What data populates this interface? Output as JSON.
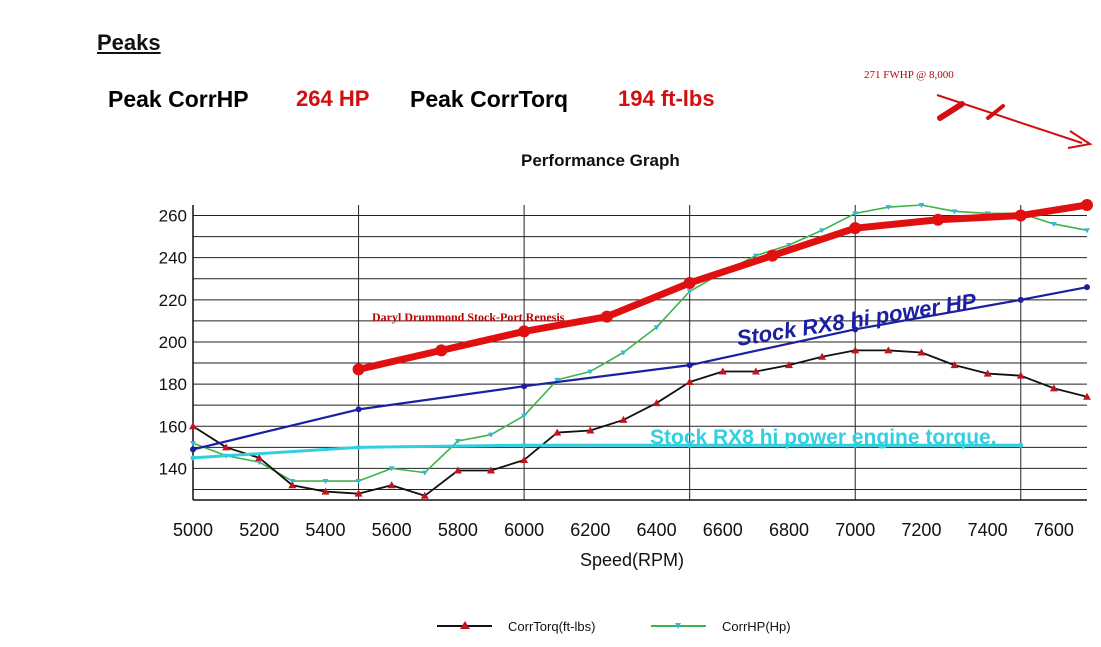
{
  "peaks": {
    "heading": "Peaks",
    "hp_label": "Peak CorrHP",
    "hp_value": "264 HP",
    "torque_label": "Peak CorrTorq",
    "torque_value": "194 ft-lbs"
  },
  "annotations": {
    "fwhp": "271 FWHP @ 8,000",
    "daryl": "Daryl Drummond Stock-Port Renesis",
    "stock_hp": "Stock RX8 hi power HP",
    "stock_torque": "Stock RX8 hi power engine torque."
  },
  "colors": {
    "torque": "#c0141e",
    "hp": "#3cb44b",
    "red_overlay": "#e01010",
    "blue_overlay": "#1a20a0",
    "cyan_overlay": "#30d0e0"
  },
  "chart_data": {
    "type": "line",
    "title": "Performance Graph",
    "xlabel": "Speed(RPM)",
    "ylabel": "",
    "xlim": [
      5000,
      7700
    ],
    "ylim": [
      125,
      265
    ],
    "x_ticks": [
      5000,
      5200,
      5400,
      5600,
      5800,
      6000,
      6200,
      6400,
      6600,
      6800,
      7000,
      7200,
      7400,
      7600
    ],
    "y_ticks": [
      140,
      160,
      180,
      200,
      220,
      240,
      260
    ],
    "legend": [
      "CorrTorq(ft-lbs)",
      "CorrHP(Hp)"
    ],
    "legend_position": "bottom",
    "series": [
      {
        "name": "CorrTorq(ft-lbs)",
        "x": [
          5000,
          5100,
          5200,
          5300,
          5400,
          5500,
          5600,
          5700,
          5800,
          5900,
          6000,
          6100,
          6200,
          6300,
          6400,
          6500,
          6600,
          6700,
          6800,
          6900,
          7000,
          7100,
          7200,
          7300,
          7400,
          7500,
          7600,
          7700
        ],
        "y": [
          160,
          150,
          145,
          132,
          129,
          128,
          132,
          127,
          139,
          139,
          144,
          157,
          158,
          163,
          171,
          181,
          186,
          186,
          189,
          193,
          196,
          196,
          195,
          189,
          185,
          184,
          178,
          174
        ]
      },
      {
        "name": "CorrHP(Hp)",
        "x": [
          5000,
          5100,
          5200,
          5300,
          5400,
          5500,
          5600,
          5700,
          5800,
          5900,
          6000,
          6100,
          6200,
          6300,
          6400,
          6500,
          6600,
          6700,
          6800,
          6900,
          7000,
          7100,
          7200,
          7300,
          7400,
          7500,
          7600,
          7700
        ],
        "y": [
          152,
          146,
          143,
          134,
          134,
          134,
          140,
          138,
          153,
          156,
          165,
          182,
          186,
          195,
          207,
          224,
          233,
          241,
          246,
          253,
          261,
          264,
          265,
          262,
          261,
          261,
          256,
          253
        ]
      },
      {
        "name": "Daryl Drummond Stock-Port Renesis",
        "x": [
          5500,
          5750,
          6000,
          6250,
          6500,
          6750,
          7000,
          7250,
          7500,
          7700
        ],
        "y": [
          187,
          196,
          205,
          212,
          228,
          241,
          254,
          258,
          260,
          265
        ]
      },
      {
        "name": "Stock RX8 hi power HP",
        "x": [
          5000,
          5500,
          6000,
          6500,
          7000,
          7500,
          7700
        ],
        "y": [
          149,
          168,
          179,
          189,
          206,
          220,
          226
        ]
      },
      {
        "name": "Stock RX8 hi power engine torque.",
        "x": [
          5000,
          5500,
          6000,
          6500,
          7000,
          7500
        ],
        "y": [
          145,
          150,
          151,
          151,
          151,
          151
        ]
      }
    ]
  }
}
